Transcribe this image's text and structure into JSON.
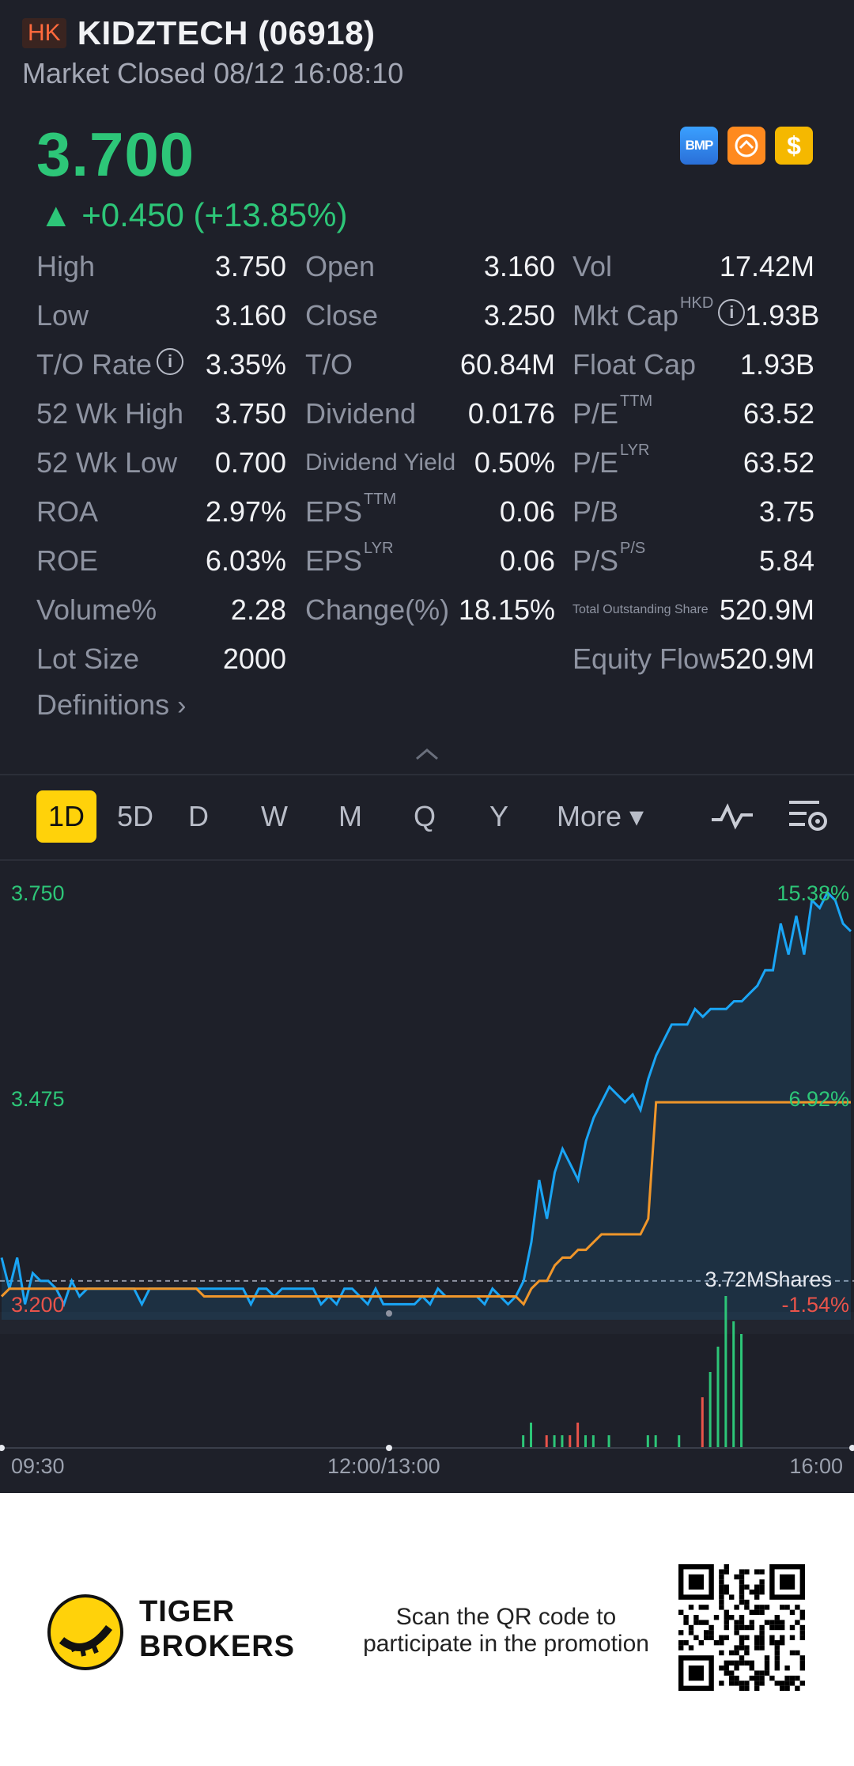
{
  "header": {
    "market_badge": "HK",
    "name": "KIDZTECH (06918)",
    "status": "Market Closed 08/12 16:08:10"
  },
  "quote": {
    "price": "3.700",
    "change": "▲ +0.450 (+13.85%)",
    "up_color": "#2dc678",
    "badges": [
      {
        "icon": "bmp-icon",
        "text": "BMP"
      },
      {
        "icon": "gauge-icon",
        "text": ""
      },
      {
        "icon": "dollar-icon",
        "text": "$"
      }
    ]
  },
  "stats": [
    [
      {
        "label": "High",
        "value": "3.750"
      },
      {
        "label": "Open",
        "value": "3.160"
      },
      {
        "label": "Vol",
        "value": "17.42M"
      }
    ],
    [
      {
        "label": "Low",
        "value": "3.160"
      },
      {
        "label": "Close",
        "value": "3.250"
      },
      {
        "label": "Mkt Cap",
        "sup": "HKD",
        "info": true,
        "value": "1.93B"
      }
    ],
    [
      {
        "label": "T/O Rate",
        "info": true,
        "value": "3.35%"
      },
      {
        "label": "T/O",
        "value": "60.84M"
      },
      {
        "label": "Float Cap",
        "value": "1.93B"
      }
    ],
    [
      {
        "label": "52 Wk High",
        "value": "3.750"
      },
      {
        "label": "Dividend",
        "value": "0.0176"
      },
      {
        "label": "P/E",
        "sup": "TTM",
        "value": "63.52"
      }
    ],
    [
      {
        "label": "52 Wk Low",
        "value": "0.700"
      },
      {
        "label": "Dividend Yield",
        "small": true,
        "value": "0.50%"
      },
      {
        "label": "P/E",
        "sup": "LYR",
        "value": "63.52"
      }
    ],
    [
      {
        "label": "ROA",
        "value": "2.97%"
      },
      {
        "label": "EPS",
        "sup": "TTM",
        "value": "0.06"
      },
      {
        "label": "P/B",
        "value": "3.75"
      }
    ],
    [
      {
        "label": "ROE",
        "value": "6.03%"
      },
      {
        "label": "EPS",
        "sup": "LYR",
        "value": "0.06"
      },
      {
        "label": "P/S",
        "sup": "P/S",
        "value": "5.84"
      }
    ],
    [
      {
        "label": "Volume%",
        "value": "2.28"
      },
      {
        "label": "Change(%)",
        "value": "18.15%"
      },
      {
        "label": "Total Outstanding Share",
        "tiny": true,
        "value": "520.9M"
      }
    ],
    [
      {
        "label": "Lot Size",
        "value": "2000"
      },
      {
        "label": "",
        "value": ""
      },
      {
        "label": "Equity Flow",
        "value": "520.9M"
      }
    ]
  ],
  "definitions_label": "Definitions",
  "periods": [
    "1D",
    "5D",
    "D",
    "W",
    "M",
    "Q",
    "Y",
    "More ▾"
  ],
  "active_period": "1D",
  "chart_labels": {
    "price_high": "3.750",
    "price_mid": "3.475",
    "price_low": "3.200",
    "pct_high": "15.38%",
    "pct_mid": "6.92%",
    "pct_low": "-1.54%",
    "volume_label": "3.72MShares",
    "x_start": "09:30",
    "x_mid": "12:00/13:00",
    "x_end": "16:00"
  },
  "chart_data": {
    "type": "line",
    "ylim": [
      3.2,
      3.75
    ],
    "prev_close": 3.25,
    "colors": {
      "price": "#1aa5f5",
      "avg": "#f0962a",
      "vol_up": "#2dc678",
      "vol_down": "#e8534a"
    },
    "series": [
      {
        "values": [
          3.28,
          3.24,
          3.28,
          3.22,
          3.26,
          3.25,
          3.25,
          3.24,
          3.22,
          3.25,
          3.23,
          3.24,
          3.24,
          3.24,
          3.24,
          3.24,
          3.24,
          3.24,
          3.22,
          3.24,
          3.24,
          3.24,
          3.24,
          3.24,
          3.24,
          3.24,
          3.24,
          3.24,
          3.24,
          3.24,
          3.24,
          3.24,
          3.22,
          3.24,
          3.24,
          3.23,
          3.24,
          3.24,
          3.24,
          3.24,
          3.24,
          3.22,
          3.23,
          3.22,
          3.24,
          3.24,
          3.23,
          3.22,
          3.24,
          3.22,
          3.22,
          3.22,
          3.22,
          3.22,
          3.23,
          3.22,
          3.24,
          3.23,
          3.23,
          3.23,
          3.23,
          3.23,
          3.22,
          3.24,
          3.23,
          3.22,
          3.23,
          3.25,
          3.3,
          3.38,
          3.33,
          3.39,
          3.42,
          3.4,
          3.38,
          3.43,
          3.46,
          3.48,
          3.5,
          3.49,
          3.48,
          3.49,
          3.47,
          3.51,
          3.54,
          3.56,
          3.58,
          3.58,
          3.58,
          3.6,
          3.59,
          3.6,
          3.6,
          3.6,
          3.61,
          3.61,
          3.62,
          3.63,
          3.65,
          3.65,
          3.71,
          3.67,
          3.72,
          3.67,
          3.74,
          3.73,
          3.75,
          3.74,
          3.71,
          3.7
        ]
      },
      {
        "values": [
          3.23,
          3.24,
          3.24,
          3.24,
          3.24,
          3.24,
          3.24,
          3.24,
          3.24,
          3.24,
          3.24,
          3.24,
          3.24,
          3.24,
          3.24,
          3.24,
          3.24,
          3.24,
          3.24,
          3.24,
          3.24,
          3.24,
          3.24,
          3.24,
          3.24,
          3.24,
          3.23,
          3.23,
          3.23,
          3.23,
          3.23,
          3.23,
          3.23,
          3.23,
          3.23,
          3.23,
          3.23,
          3.23,
          3.23,
          3.23,
          3.23,
          3.23,
          3.23,
          3.23,
          3.23,
          3.23,
          3.23,
          3.23,
          3.23,
          3.23,
          3.23,
          3.23,
          3.23,
          3.23,
          3.23,
          3.23,
          3.23,
          3.23,
          3.23,
          3.23,
          3.23,
          3.23,
          3.23,
          3.23,
          3.23,
          3.23,
          3.23,
          3.22,
          3.24,
          3.25,
          3.25,
          3.27,
          3.28,
          3.28,
          3.29,
          3.29,
          3.3,
          3.31,
          3.31,
          3.31,
          3.31,
          3.31,
          3.31,
          3.33,
          3.48,
          3.48,
          3.48,
          3.48,
          3.48,
          3.48,
          3.48,
          3.48,
          3.48,
          3.48,
          3.48,
          3.48,
          3.48,
          3.48,
          3.48,
          3.48,
          3.48,
          3.48,
          3.48,
          3.48,
          3.48,
          3.48,
          3.48,
          3.48,
          3.48,
          3.48
        ]
      }
    ],
    "volume": [
      0,
      0,
      0,
      0,
      0,
      0,
      0,
      0,
      0,
      0,
      0,
      0,
      0,
      0,
      0,
      0,
      0,
      0,
      0,
      0,
      0,
      0,
      0,
      0,
      0,
      0,
      0,
      0,
      0,
      0,
      0,
      0,
      0,
      0,
      0,
      0,
      0,
      0,
      0,
      0,
      0,
      0,
      0,
      0,
      0,
      0,
      0,
      0,
      0,
      0,
      0,
      0,
      0,
      0,
      0,
      0,
      0,
      0,
      0,
      0,
      0,
      0,
      0,
      0,
      0,
      0,
      0,
      1,
      2,
      0,
      1,
      1,
      1,
      1,
      2,
      1,
      1,
      0,
      1,
      0,
      0,
      0,
      0,
      1,
      1,
      0,
      0,
      1,
      0,
      0,
      4,
      6,
      8,
      12,
      10,
      9,
      0,
      0,
      0,
      0,
      0,
      0,
      0,
      0,
      0,
      0,
      0,
      0,
      0,
      0
    ]
  }
}
